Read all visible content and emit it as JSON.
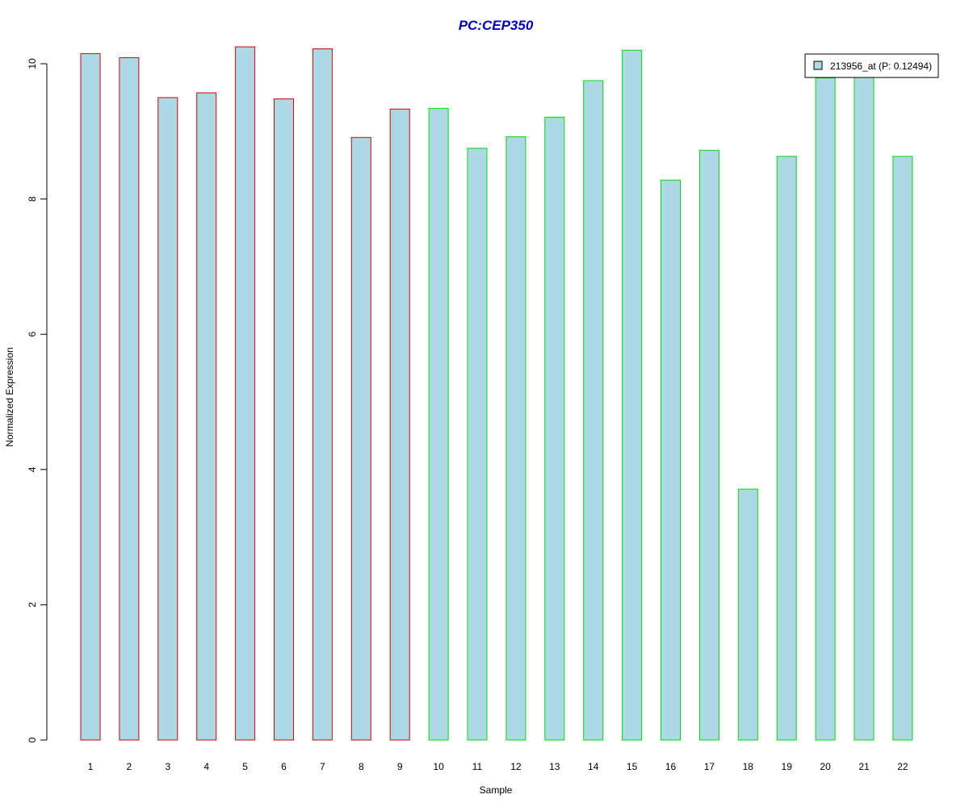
{
  "chart_data": {
    "type": "bar",
    "title": "PC:CEP350",
    "xlabel": "Sample",
    "ylabel": "Normalized Expression",
    "categories": [
      "1",
      "2",
      "3",
      "4",
      "5",
      "6",
      "7",
      "8",
      "9",
      "10",
      "11",
      "12",
      "13",
      "14",
      "15",
      "16",
      "17",
      "18",
      "19",
      "20",
      "21",
      "22"
    ],
    "values": [
      10.15,
      10.09,
      9.5,
      9.57,
      10.25,
      9.48,
      10.22,
      8.91,
      9.33,
      9.34,
      8.75,
      8.92,
      9.21,
      9.75,
      10.2,
      8.28,
      8.72,
      3.71,
      8.63,
      9.79,
      9.84,
      8.63
    ],
    "group_of_bar": [
      "a",
      "a",
      "a",
      "a",
      "a",
      "a",
      "a",
      "a",
      "a",
      "b",
      "b",
      "b",
      "b",
      "b",
      "b",
      "b",
      "b",
      "b",
      "b",
      "b",
      "b",
      "b"
    ],
    "group_colors": {
      "a": "#dd0000",
      "b": "#00dd00"
    },
    "bar_fill": "#add8e6",
    "title_color": "#0000cc",
    "ylim": [
      0,
      10.5
    ],
    "yticks": [
      0,
      2,
      4,
      6,
      8,
      10
    ],
    "grid": false,
    "legend": {
      "position": "top-right",
      "entries": [
        {
          "label": "213956_at (P: 0.12494)",
          "color": "#add8e6"
        }
      ]
    }
  }
}
